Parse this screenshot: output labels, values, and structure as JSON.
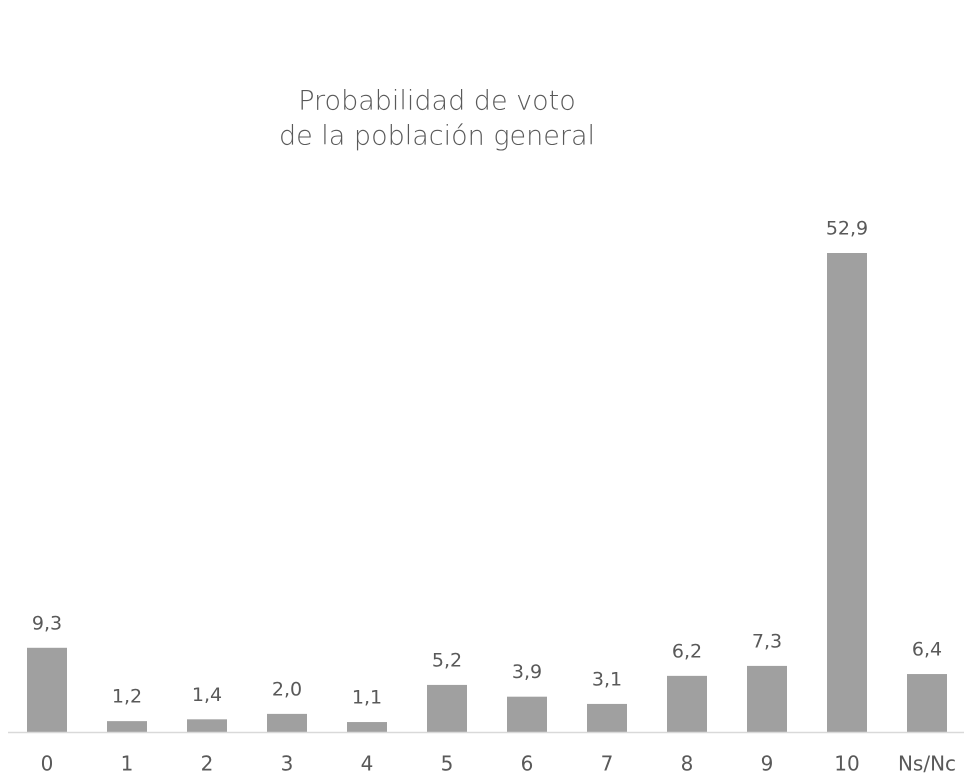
{
  "chart_data": {
    "type": "bar",
    "title": [
      "Probabilidad de voto",
      "de la población general"
    ],
    "categories": [
      "0",
      "1",
      "2",
      "3",
      "4",
      "5",
      "6",
      "7",
      "8",
      "9",
      "10",
      "Ns/Nc"
    ],
    "values": [
      9.3,
      1.2,
      1.4,
      2.0,
      1.1,
      5.2,
      3.9,
      3.1,
      6.2,
      7.3,
      52.9,
      6.4
    ],
    "value_labels": [
      "9,3",
      "1,2",
      "1,4",
      "2,0",
      "1,1",
      "5,2",
      "3,9",
      "3,1",
      "6,2",
      "7,3",
      "52,9",
      "6,4"
    ],
    "color": "#a0a0a0"
  }
}
